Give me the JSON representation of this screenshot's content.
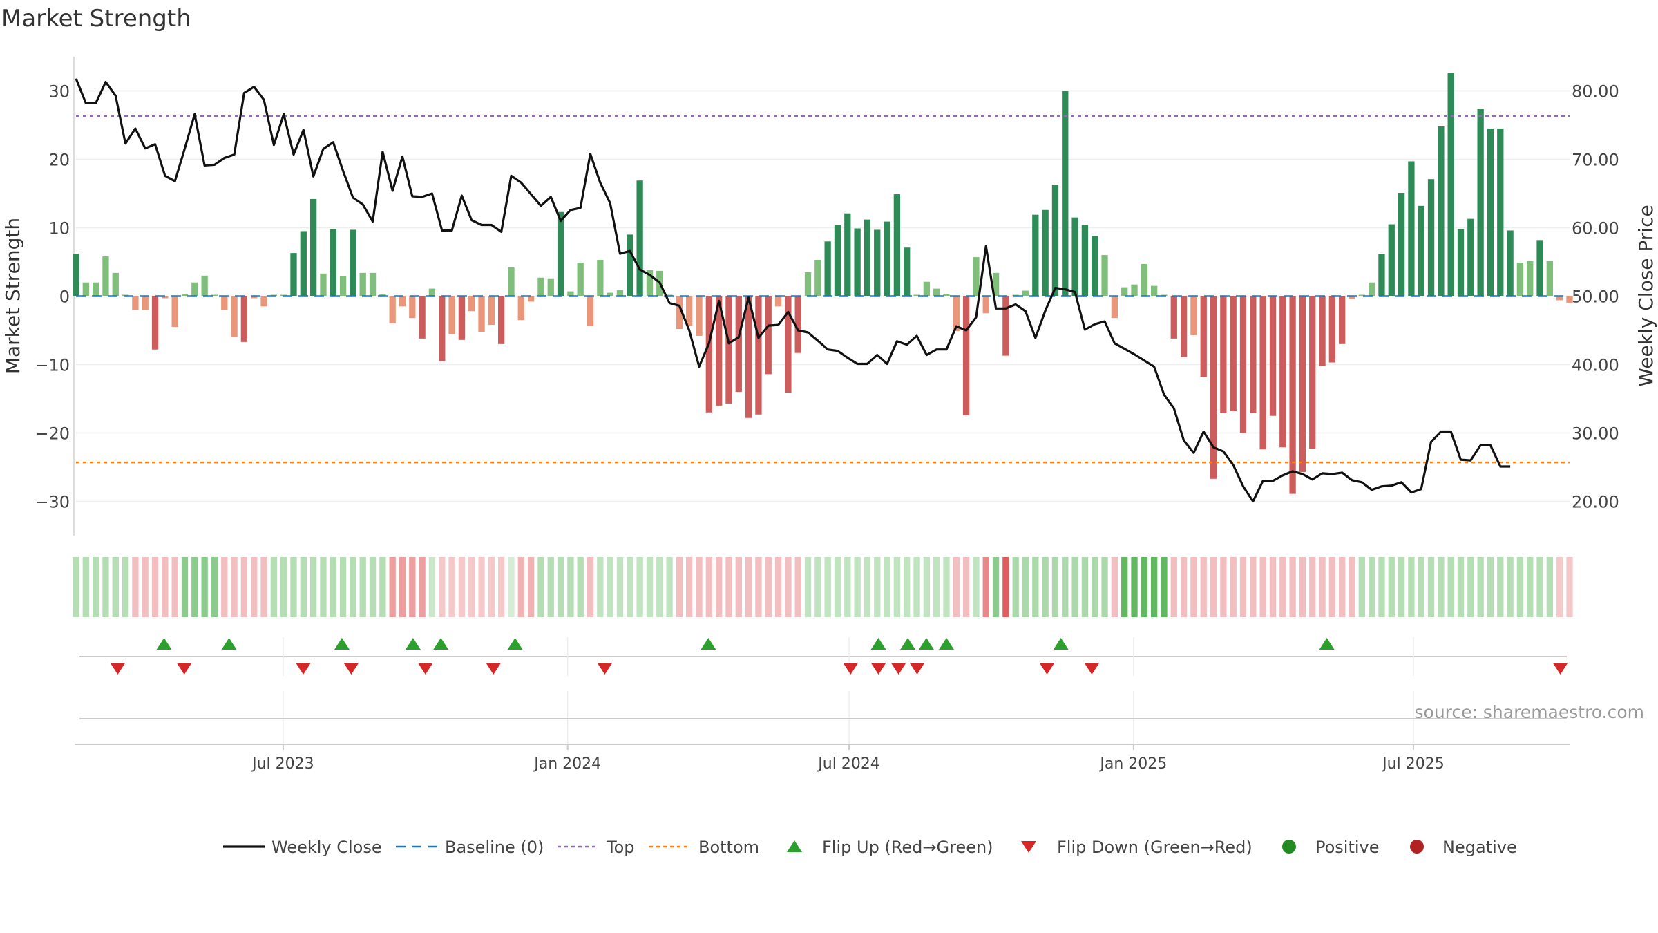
{
  "chart_data": {
    "type": "bar",
    "title": "Market Strength",
    "ylabel_left": "Market Strength",
    "ylabel_right": "Weekly Close Price",
    "source": "source: sharemaestro.com",
    "ylim_left": [
      -35,
      35
    ],
    "ylim_right": [
      15,
      85
    ],
    "yticks_left": [
      30,
      20,
      10,
      0,
      -10,
      -20,
      -30
    ],
    "ytick_labels_left": [
      "30",
      "20",
      "10",
      "0",
      "−10",
      "−20",
      "−30"
    ],
    "yticks_right": [
      80,
      70,
      60,
      50,
      40,
      30,
      20
    ],
    "ytick_labels_right": [
      "80.00",
      "70.00",
      "60.00",
      "50.00",
      "40.00",
      "30.00",
      "20.00"
    ],
    "x_start": "2023-02-17",
    "x_end": "2025-10-10",
    "x_ticks": [
      {
        "date": "2023-07-01",
        "label": "Jul 2023"
      },
      {
        "date": "2024-01-01",
        "label": "Jan 2024"
      },
      {
        "date": "2024-07-01",
        "label": "Jul 2024"
      },
      {
        "date": "2025-01-01",
        "label": "Jan 2025"
      },
      {
        "date": "2025-07-01",
        "label": "Jul 2025"
      }
    ],
    "top_line": 26.3,
    "bottom_line": -24.3,
    "strength": [
      6.2,
      2,
      2,
      5.8,
      3.4,
      0.2,
      -2,
      -2,
      -7.8,
      -0.3,
      -4.5,
      0.3,
      2,
      3,
      0.2,
      -2,
      -6,
      -6.7,
      -0.3,
      -1.5,
      0.2,
      0.2,
      6.3,
      9.5,
      14.2,
      3.3,
      9.8,
      2.9,
      9.7,
      3.4,
      3.4,
      0.3,
      -4,
      -1.5,
      -3.2,
      -6.2,
      1.1,
      -9.5,
      -5.6,
      -6.4,
      -2.2,
      -5.2,
      -4.2,
      -7,
      4.2,
      -3.5,
      -0.8,
      2.7,
      2.6,
      12.3,
      0.7,
      4.9,
      -4.4,
      5.3,
      0.5,
      0.9,
      9,
      16.9,
      3.8,
      3.7,
      0.2,
      -4.8,
      -4.3,
      -5.8,
      -17,
      -16,
      -15.7,
      -14,
      -17.8,
      -17.3,
      -11.4,
      -1.5,
      -14.1,
      -8.3,
      3.5,
      5.3,
      8,
      10.4,
      12.1,
      9.9,
      11.2,
      9.7,
      10.9,
      14.9,
      7.1,
      0.2,
      2.1,
      1.1,
      0.3,
      -5.1,
      -17.4,
      5.7,
      -2.5,
      3.4,
      -8.7,
      0.2,
      0.8,
      11.9,
      12.6,
      16.3,
      30,
      11.5,
      10.4,
      8.8,
      6,
      -3.2,
      1.3,
      1.7,
      4.7,
      1.5,
      0.2,
      -6.2,
      -8.9,
      -5.7,
      -11.8,
      -26.7,
      -17.1,
      -16.8,
      -20,
      -17.1,
      -22.4,
      -17.5,
      -22.1,
      -28.9,
      -25.7,
      -22.3,
      -10.2,
      -9.7,
      -7,
      -0.4,
      0.2,
      2,
      6.2,
      10.5,
      15.1,
      19.7,
      13.2,
      17.1,
      24.8,
      32.6,
      9.8,
      11.3,
      27.4,
      24.5,
      24.5,
      9.6,
      4.9,
      5.1,
      8.2,
      5.1,
      -0.6,
      -1
    ],
    "price": [
      81.8,
      78.2,
      78.2,
      81.3,
      79.3,
      72.3,
      74.5,
      71.6,
      72.2,
      67.6,
      66.8,
      71.6,
      76.6,
      69.1,
      69.2,
      70.2,
      70.7,
      79.7,
      80.6,
      78.7,
      72.1,
      76.6,
      70.7,
      74.3,
      67.5,
      71.5,
      72.5,
      68.3,
      64.4,
      63.4,
      60.9,
      71.1,
      65.4,
      70.4,
      64.6,
      64.5,
      65,
      59.6,
      59.6,
      64.7,
      61.1,
      60.4,
      60.4,
      59.4,
      67.6,
      66.6,
      64.9,
      63.2,
      64.5,
      61,
      62.6,
      62.9,
      70.8,
      66.6,
      63.6,
      56.2,
      56.6,
      53.9,
      53.1,
      52,
      49,
      48.6,
      45,
      39.7,
      43.1,
      49.3,
      43.1,
      44,
      49.8,
      43.9,
      45.7,
      45.8,
      47.7,
      45,
      44.7,
      43.5,
      42.2,
      42,
      41,
      40.1,
      40.1,
      41.4,
      40.1,
      43.4,
      42.9,
      44.2,
      41.4,
      42.2,
      42.2,
      45.6,
      45,
      46.9,
      57.3,
      48.2,
      48.2,
      48.8,
      47.8,
      43.9,
      47.9,
      51.2,
      51,
      50.6,
      45.1,
      45.9,
      46.3,
      43.1,
      42.3,
      41.5,
      40.6,
      39.7,
      35.6,
      33.6,
      28.9,
      27.1,
      30.2,
      27.9,
      27.3,
      25.3,
      22.2,
      20,
      23,
      23,
      23.8,
      24.4,
      24,
      23.2,
      24.1,
      24,
      24.2,
      23.1,
      22.8,
      21.7,
      22.2,
      22.3,
      22.8,
      21.3,
      21.8,
      28.7,
      30.2,
      30.2,
      26.1,
      26,
      28.2,
      28.2,
      25.1,
      25.1
    ],
    "signal_positive_intensity": [
      0.35,
      0.55,
      0.35,
      0.25,
      0.2,
      0.35,
      0.3,
      0.3,
      0.3,
      0.55,
      0.4,
      0.75
    ],
    "signal_negative_intensity": [
      0.3,
      0.3,
      0.45,
      0.25,
      0.35,
      0.3,
      0.3,
      0.3,
      0.55,
      0.75,
      0.3,
      0.3,
      0.25
    ],
    "flip_up_dates": [
      "2023-04-15",
      "2023-05-27",
      "2023-08-08",
      "2023-09-23",
      "2023-10-11",
      "2023-11-28",
      "2024-04-01",
      "2024-07-20",
      "2024-08-08",
      "2024-08-20",
      "2024-09-02",
      "2024-11-15",
      "2025-05-06"
    ],
    "flip_down_dates": [
      "2023-03-16",
      "2023-04-28",
      "2023-07-14",
      "2023-08-14",
      "2023-10-01",
      "2023-11-14",
      "2024-01-25",
      "2024-07-02",
      "2024-07-20",
      "2024-08-02",
      "2024-08-14",
      "2024-11-06",
      "2024-12-05",
      "2025-10-04"
    ],
    "colors": {
      "strong_positive": "#2e8b57",
      "weak_positive": "#7fbf7b",
      "strong_negative": "#cd5c5c",
      "weak_negative": "#e9967a",
      "price_line": "#111111",
      "baseline": "#1f77b4",
      "top": "#9467bd",
      "bottom": "#ff7f0e",
      "flip_up": "#2ca02c",
      "flip_down": "#d62728",
      "legend_positive": "#228b22",
      "legend_negative": "#b22222"
    },
    "legend": [
      {
        "label": "Weekly Close",
        "kind": "line"
      },
      {
        "label": "Baseline (0)",
        "kind": "baseline"
      },
      {
        "label": "Top",
        "kind": "top"
      },
      {
        "label": "Bottom",
        "kind": "bottom"
      },
      {
        "label": "Flip Up (Red→Green)",
        "kind": "up"
      },
      {
        "label": "Flip Down (Green→Red)",
        "kind": "down"
      },
      {
        "label": "Positive",
        "kind": "pos"
      },
      {
        "label": "Negative",
        "kind": "neg"
      }
    ]
  }
}
